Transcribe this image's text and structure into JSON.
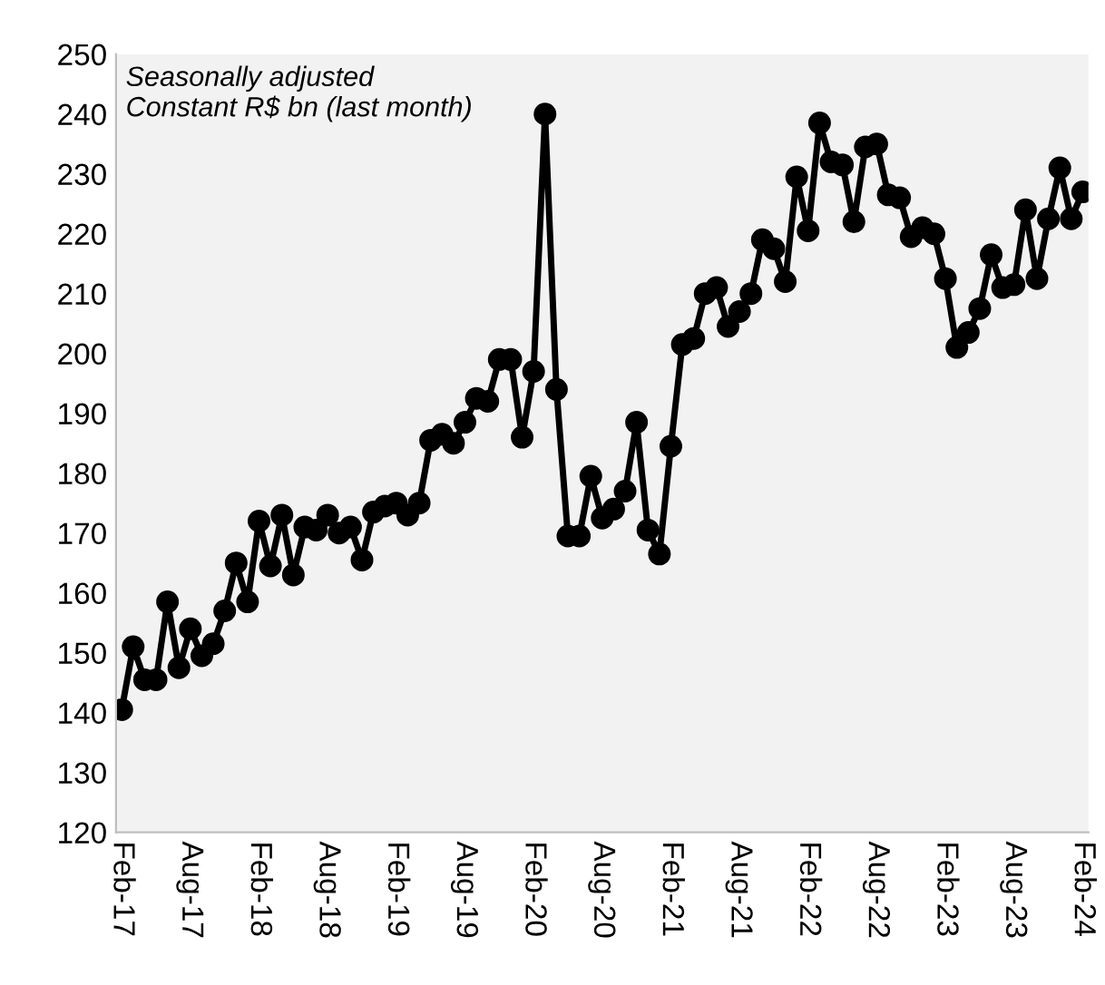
{
  "chart_data": {
    "type": "line",
    "subtitle": "Seasonally adjusted\nConstant R$ bn (last month)",
    "categories": [
      "Feb-17",
      null,
      null,
      null,
      null,
      null,
      "Aug-17",
      null,
      null,
      null,
      null,
      null,
      "Feb-18",
      null,
      null,
      null,
      null,
      null,
      "Aug-18",
      null,
      null,
      null,
      null,
      null,
      "Feb-19",
      null,
      null,
      null,
      null,
      null,
      "Aug-19",
      null,
      null,
      null,
      null,
      null,
      "Feb-20",
      null,
      null,
      null,
      null,
      null,
      "Aug-20",
      null,
      null,
      null,
      null,
      null,
      "Feb-21",
      null,
      null,
      null,
      null,
      null,
      "Aug-21",
      null,
      null,
      null,
      null,
      null,
      "Feb-22",
      null,
      null,
      null,
      null,
      null,
      "Aug-22",
      null,
      null,
      null,
      null,
      null,
      "Feb-23",
      null,
      null,
      null,
      null,
      null,
      "Aug-23",
      null,
      null,
      null,
      null,
      null,
      "Feb-24"
    ],
    "series": [
      {
        "color": "#000000",
        "values": [
          140.5,
          151,
          145.5,
          145.5,
          158.5,
          147.5,
          154,
          149.5,
          151.5,
          157,
          165,
          158.5,
          172,
          164.5,
          173,
          163,
          171,
          170.5,
          173,
          170,
          171,
          165.5,
          173.5,
          174.5,
          175,
          173,
          175,
          185.5,
          186.5,
          185,
          188.5,
          192.5,
          192,
          199,
          199,
          186,
          197,
          240,
          194,
          169.5,
          169.5,
          179.5,
          172.5,
          174,
          177,
          188.5,
          170.5,
          166.5,
          184.5,
          201.5,
          202.5,
          210,
          211,
          204.5,
          207,
          210,
          219,
          217.5,
          212,
          229.5,
          220.5,
          238.5,
          232,
          231.5,
          222,
          234.5,
          235,
          226.5,
          226,
          219.5,
          221,
          220,
          212.5,
          201,
          203.5,
          207.5,
          216.5,
          211,
          211.5,
          224,
          212.5,
          222.5,
          231,
          222.5,
          227
        ]
      }
    ],
    "ylim": [
      120,
      250
    ],
    "yticks": [
      120,
      130,
      140,
      150,
      160,
      170,
      180,
      190,
      200,
      210,
      220,
      230,
      240,
      250
    ],
    "grid": false,
    "legend": false,
    "marker": "circle",
    "line_style": "solid"
  }
}
